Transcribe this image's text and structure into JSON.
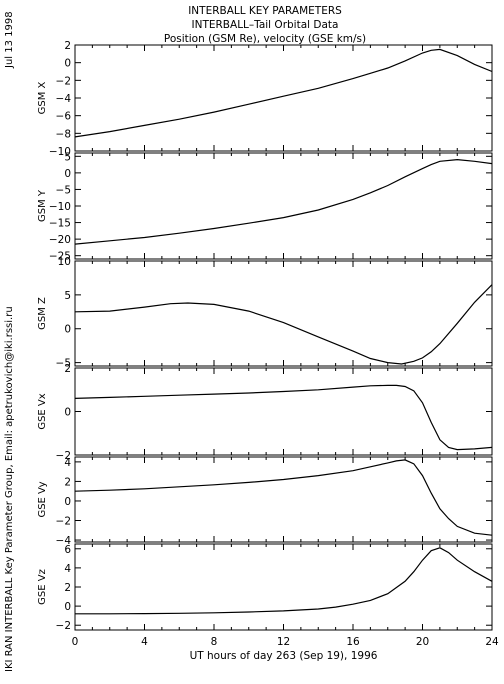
{
  "header": {
    "title_lines": [
      "INTERBALL KEY PARAMETERS",
      "INTERBALL–Tail Orbital Data",
      "Position (GSM Re), velocity (GSE km/s)"
    ],
    "date_label": "Jul 13 1998",
    "credit": "IKI RAN INTERBALL Key Parameter Group, Email: apetrukovich@iki.rssi.ru"
  },
  "chart_data": [
    {
      "type": "line",
      "ylabel": "GSM X",
      "ylim": [
        -10,
        2
      ],
      "yticks": [
        2,
        0,
        -2,
        -4,
        -6,
        -8,
        -10
      ],
      "grid": false,
      "x": [
        0,
        2,
        4,
        6,
        8,
        10,
        12,
        14,
        16,
        17,
        18,
        19,
        20,
        20.5,
        21,
        22,
        23,
        24
      ],
      "values": [
        -8.4,
        -7.8,
        -7.1,
        -6.4,
        -5.6,
        -4.7,
        -3.8,
        -2.9,
        -1.8,
        -1.2,
        -0.6,
        0.2,
        1.1,
        1.4,
        1.5,
        0.8,
        -0.2,
        -1.0
      ]
    },
    {
      "type": "line",
      "ylabel": "GSM Y",
      "ylim": [
        -26,
        6
      ],
      "yticks": [
        5,
        0,
        -5,
        -10,
        -15,
        -20,
        -25
      ],
      "grid": false,
      "x": [
        0,
        2,
        4,
        6,
        8,
        10,
        12,
        14,
        16,
        17,
        18,
        19,
        20,
        20.5,
        21,
        22,
        23,
        24
      ],
      "values": [
        -21.5,
        -20.5,
        -19.5,
        -18.2,
        -16.8,
        -15.2,
        -13.5,
        -11.2,
        -8.0,
        -6.0,
        -3.8,
        -1.2,
        1.3,
        2.5,
        3.5,
        4.0,
        3.5,
        2.8
      ]
    },
    {
      "type": "line",
      "ylabel": "GSM Z",
      "ylim": [
        -5.5,
        10
      ],
      "yticks": [
        10,
        5,
        0,
        -5
      ],
      "grid": false,
      "x": [
        0,
        2,
        4,
        5.5,
        6.5,
        8,
        10,
        12,
        14,
        16,
        17,
        18,
        18.8,
        19.5,
        20,
        20.5,
        21,
        22,
        23,
        24
      ],
      "values": [
        2.5,
        2.6,
        3.2,
        3.7,
        3.8,
        3.6,
        2.6,
        0.9,
        -1.2,
        -3.3,
        -4.4,
        -5.0,
        -5.2,
        -4.8,
        -4.3,
        -3.4,
        -2.2,
        0.8,
        3.9,
        6.5
      ]
    },
    {
      "type": "line",
      "ylabel": "GSE Vx",
      "ylim": [
        -2,
        2
      ],
      "yticks": [
        2,
        0,
        -2
      ],
      "grid": false,
      "x": [
        0,
        2,
        4,
        6,
        8,
        10,
        12,
        14,
        16,
        17,
        18,
        18.5,
        19,
        19.5,
        20,
        20.5,
        21,
        21.5,
        22,
        23,
        24
      ],
      "values": [
        0.6,
        0.65,
        0.7,
        0.75,
        0.8,
        0.85,
        0.92,
        1.0,
        1.12,
        1.18,
        1.2,
        1.2,
        1.15,
        0.95,
        0.4,
        -0.5,
        -1.3,
        -1.65,
        -1.75,
        -1.72,
        -1.65
      ]
    },
    {
      "type": "line",
      "ylabel": "GSE Vy",
      "ylim": [
        -4.2,
        4.5
      ],
      "yticks": [
        4,
        2,
        0,
        -2,
        -4
      ],
      "grid": false,
      "x": [
        0,
        2,
        4,
        6,
        8,
        10,
        12,
        14,
        16,
        17,
        18,
        18.5,
        19,
        19.5,
        20,
        20.5,
        21,
        21.5,
        22,
        23,
        24
      ],
      "values": [
        1.0,
        1.1,
        1.25,
        1.45,
        1.65,
        1.9,
        2.2,
        2.6,
        3.1,
        3.5,
        3.9,
        4.1,
        4.2,
        3.8,
        2.6,
        0.8,
        -0.8,
        -1.8,
        -2.6,
        -3.3,
        -3.5
      ]
    },
    {
      "type": "line",
      "ylabel": "GSE Vz",
      "ylim": [
        -2.5,
        6.5
      ],
      "yticks": [
        6,
        4,
        2,
        0,
        -2
      ],
      "grid": false,
      "xlabel": "UT hours of day 263 (Sep 19), 1996",
      "xticks": [
        0,
        4,
        8,
        12,
        16,
        20,
        24
      ],
      "x": [
        0,
        2,
        4,
        6,
        8,
        10,
        12,
        14,
        15,
        16,
        17,
        18,
        19,
        19.5,
        20,
        20.5,
        21,
        21.5,
        22,
        23,
        24
      ],
      "values": [
        -0.8,
        -0.8,
        -0.78,
        -0.75,
        -0.7,
        -0.62,
        -0.5,
        -0.3,
        -0.1,
        0.2,
        0.6,
        1.3,
        2.6,
        3.6,
        4.8,
        5.8,
        6.1,
        5.6,
        4.8,
        3.6,
        2.6
      ]
    }
  ]
}
